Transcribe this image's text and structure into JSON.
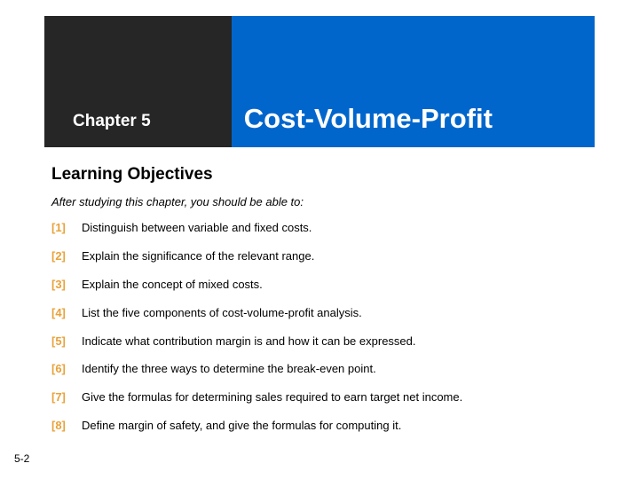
{
  "header": {
    "chapter_label": "Chapter 5",
    "chapter_title": "Cost-Volume-Profit",
    "left_bg": "#262626",
    "right_bg": "#0066cc",
    "text_color": "#ffffff"
  },
  "section": {
    "heading": "Learning Objectives",
    "intro": "After studying this chapter, you should be able to:"
  },
  "objectives": [
    {
      "num": "[1]",
      "text": "Distinguish between variable and fixed costs."
    },
    {
      "num": "[2]",
      "text": "Explain the significance of the relevant range."
    },
    {
      "num": "[3]",
      "text": "Explain the concept of mixed costs."
    },
    {
      "num": "[4]",
      "text": "List the five components of cost-volume-profit analysis."
    },
    {
      "num": "[5]",
      "text": "Indicate what contribution margin is and how it can be expressed."
    },
    {
      "num": "[6]",
      "text": "Identify the three ways to determine the break-even point."
    },
    {
      "num": "[7]",
      "text": "Give the formulas for determining sales required to earn target net income."
    },
    {
      "num": "[8]",
      "text": "Define margin of safety, and give the formulas for computing it."
    }
  ],
  "colors": {
    "objective_num": "#e8a23a",
    "body_text": "#000000",
    "page_bg": "#ffffff"
  },
  "footer": {
    "page_number": "5-2"
  }
}
